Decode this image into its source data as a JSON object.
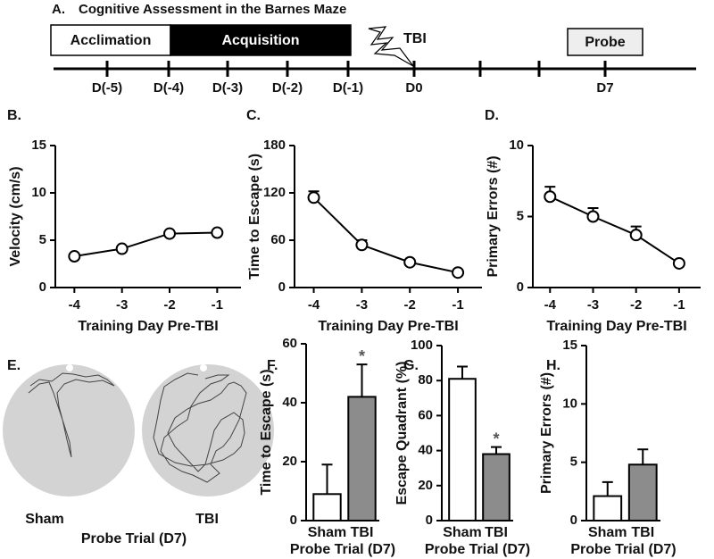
{
  "panel_a": {
    "label": "A.",
    "title": "Cognitive Assessment in the Barnes Maze",
    "phases": [
      "Acclimation",
      "Acquisition",
      "Probe"
    ],
    "event": "TBI",
    "days": [
      "D(-5)",
      "D(-4)",
      "D(-3)",
      "D(-2)",
      "D(-1)",
      "D0",
      "D7"
    ]
  },
  "panel_e": {
    "label": "E.",
    "groups": [
      "Sham",
      "TBI"
    ],
    "xlabel": "Probe Trial (D7)"
  },
  "chart_data": [
    {
      "type": "line",
      "panel_label": "B.",
      "x": [
        -4,
        -3,
        -2,
        -1
      ],
      "xlim": [
        -4.4,
        -0.5
      ],
      "xticks": [
        -4,
        -3,
        -2,
        -1
      ],
      "values": [
        3.3,
        4.1,
        5.7,
        5.8
      ],
      "ylim": [
        0,
        15
      ],
      "yticks": [
        0,
        5,
        10,
        15
      ],
      "ylabel": "Velocity (cm/s)",
      "xlabel": "Training Day Pre-TBI"
    },
    {
      "type": "line",
      "panel_label": "C.",
      "x": [
        -4,
        -3,
        -2,
        -1
      ],
      "xlim": [
        -4.4,
        -0.5
      ],
      "xticks": [
        -4,
        -3,
        -2,
        -1
      ],
      "values": [
        114,
        54,
        32,
        19
      ],
      "errors": [
        8,
        6,
        3,
        2
      ],
      "ylim": [
        0,
        180
      ],
      "yticks": [
        0,
        60,
        120,
        180
      ],
      "ylabel": "Time to Escape (s)",
      "xlabel": "Training Day Pre-TBI"
    },
    {
      "type": "line",
      "panel_label": "D.",
      "x": [
        -4,
        -3,
        -2,
        -1
      ],
      "xlim": [
        -4.4,
        -0.5
      ],
      "xticks": [
        -4,
        -3,
        -2,
        -1
      ],
      "values": [
        6.4,
        5.0,
        3.7,
        1.7
      ],
      "errors": [
        0.7,
        0.6,
        0.6,
        0.2
      ],
      "ylim": [
        0,
        10
      ],
      "yticks": [
        0,
        5,
        10
      ],
      "ylabel": "Primary Errors (#)",
      "xlabel": "Training Day Pre-TBI"
    },
    {
      "type": "bar",
      "panel_label": "F.",
      "categories": [
        "Sham",
        "TBI"
      ],
      "values": [
        9,
        42
      ],
      "errors": [
        10,
        11
      ],
      "colors": [
        "#ffffff",
        "#8c8c8c"
      ],
      "annotations": [
        {
          "x": 1,
          "text": "*"
        }
      ],
      "ylim": [
        0,
        60
      ],
      "yticks": [
        0,
        20,
        40,
        60
      ],
      "ylabel": "Time to Escape (s)",
      "xlabel": "Probe Trial (D7)"
    },
    {
      "type": "bar",
      "panel_label": "G.",
      "categories": [
        "Sham",
        "TBI"
      ],
      "values": [
        81,
        38
      ],
      "errors": [
        7,
        4
      ],
      "colors": [
        "#ffffff",
        "#8c8c8c"
      ],
      "annotations": [
        {
          "x": 1,
          "text": "*"
        }
      ],
      "ylim": [
        0,
        100
      ],
      "yticks": [
        0,
        20,
        40,
        60,
        80,
        100
      ],
      "ylabel": "Escape Quadrant (%)",
      "xlabel": "Probe Trial (D7)"
    },
    {
      "type": "bar",
      "panel_label": "H.",
      "categories": [
        "Sham",
        "TBI"
      ],
      "values": [
        2.1,
        4.8
      ],
      "errors": [
        1.2,
        1.3
      ],
      "colors": [
        "#ffffff",
        "#8c8c8c"
      ],
      "ylim": [
        0,
        15
      ],
      "yticks": [
        0,
        5,
        10,
        15
      ],
      "ylabel": "Primary Errors (#)",
      "xlabel": "Probe Trial (D7)"
    }
  ]
}
